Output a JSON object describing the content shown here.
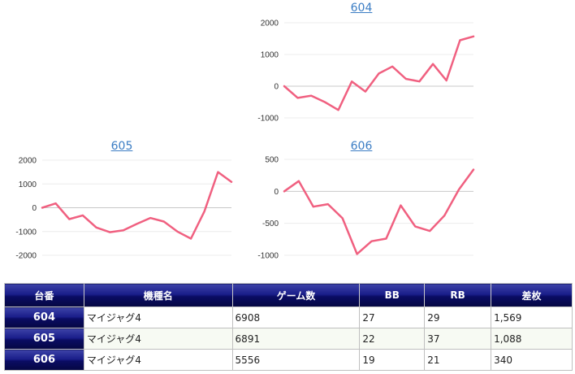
{
  "chart_data": [
    {
      "type": "line",
      "title": "604",
      "yticks": [
        2000,
        1000,
        0,
        -1000
      ],
      "ylim": [
        -1000,
        2000
      ],
      "color": "#f06080",
      "values": [
        0,
        -370,
        -300,
        -500,
        -750,
        150,
        -170,
        400,
        620,
        230,
        150,
        700,
        180,
        1450,
        1569
      ]
    },
    {
      "type": "line",
      "title": "605",
      "yticks": [
        2000,
        1000,
        0,
        -1000,
        -2000
      ],
      "ylim": [
        -2000,
        2000
      ],
      "color": "#f06080",
      "values": [
        0,
        180,
        -480,
        -320,
        -830,
        -1030,
        -950,
        -680,
        -430,
        -580,
        -1000,
        -1300,
        -150,
        1500,
        1088
      ]
    },
    {
      "type": "line",
      "title": "606",
      "yticks": [
        500,
        0,
        -500,
        -1000
      ],
      "ylim": [
        -1000,
        500
      ],
      "color": "#f06080",
      "values": [
        0,
        160,
        -240,
        -200,
        -420,
        -980,
        -780,
        -740,
        -220,
        -550,
        -620,
        -380,
        30,
        340
      ]
    }
  ],
  "table": {
    "headers": [
      "台番",
      "機種名",
      "ゲーム数",
      "BB",
      "RB",
      "差枚"
    ],
    "rows": [
      [
        "604",
        "マイジャグ4",
        "6908",
        "27",
        "29",
        "1,569"
      ],
      [
        "605",
        "マイジャグ4",
        "6891",
        "22",
        "37",
        "1,088"
      ],
      [
        "606",
        "マイジャグ4",
        "5556",
        "19",
        "21",
        "340"
      ]
    ]
  }
}
